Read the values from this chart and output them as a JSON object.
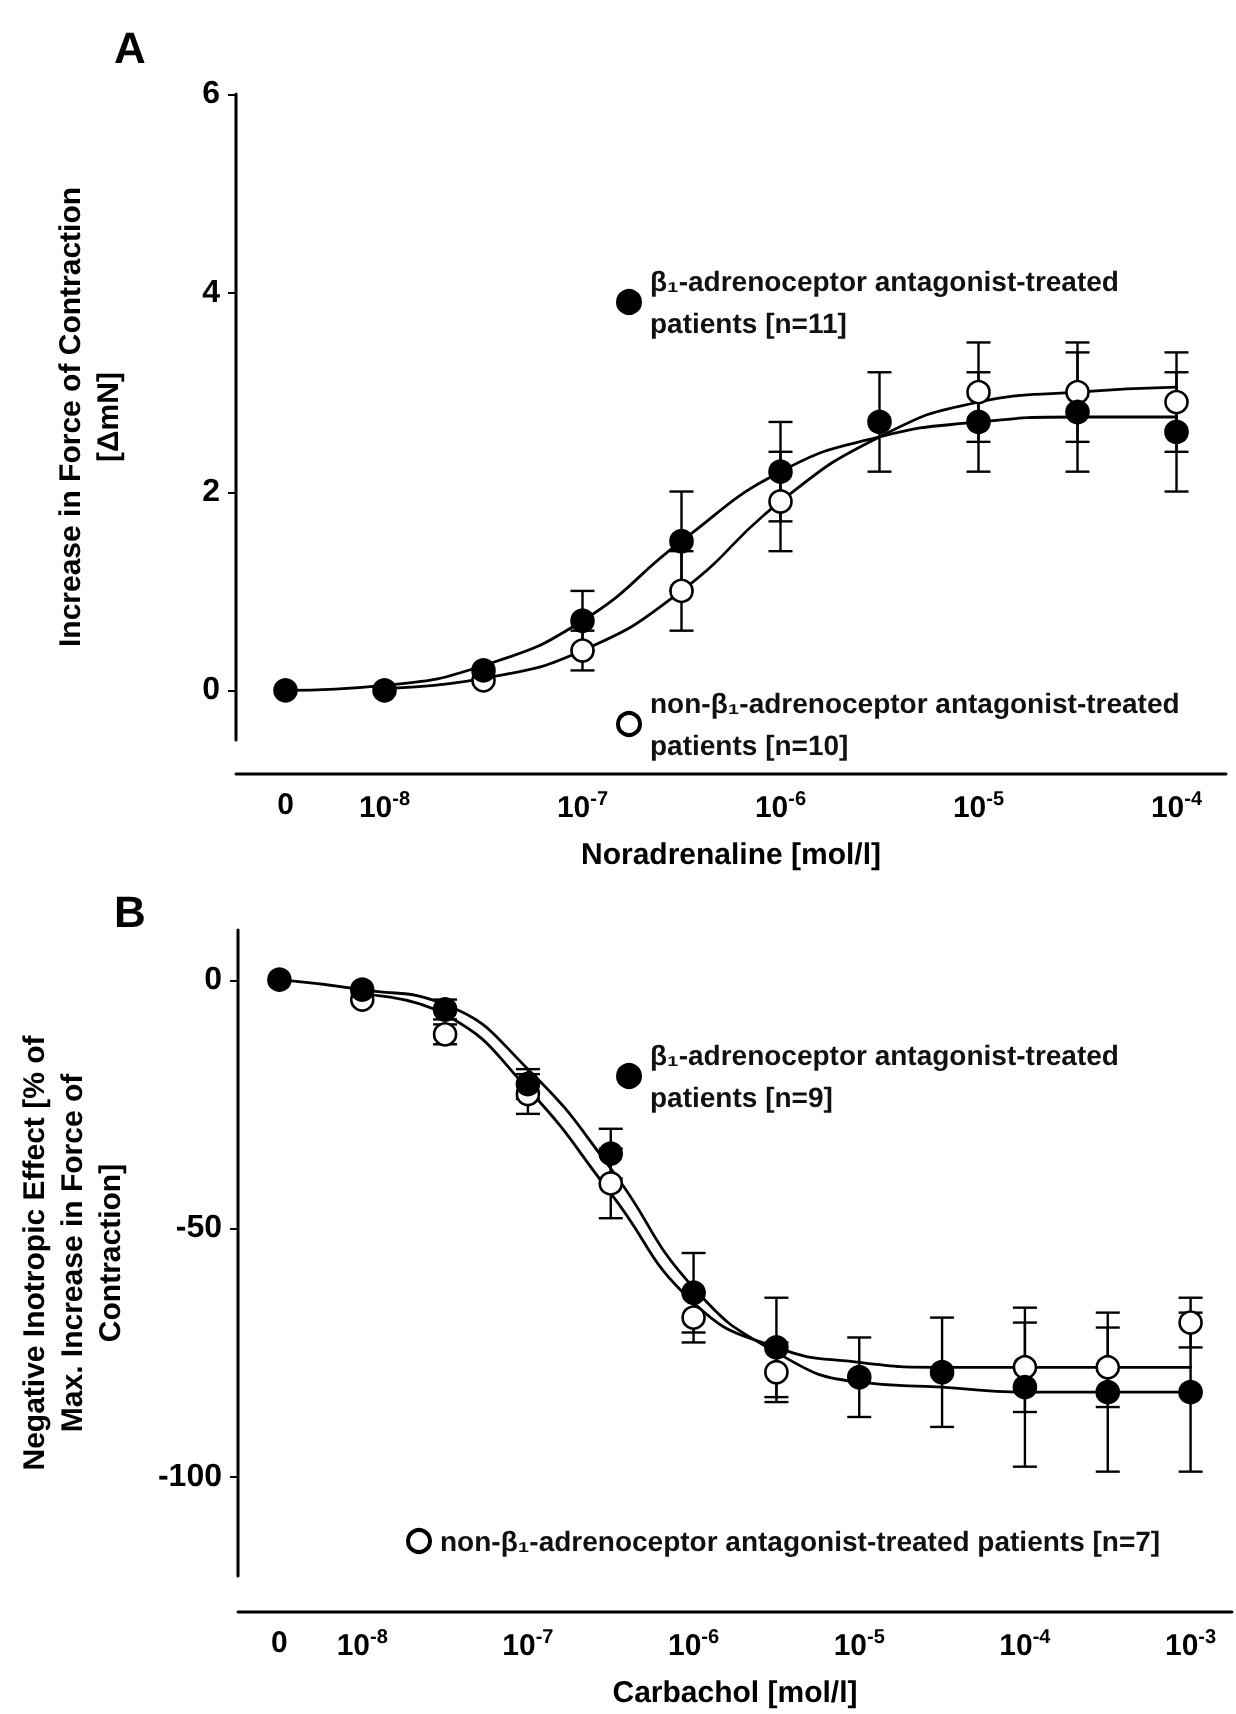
{
  "chart_data": [
    {
      "type": "scatter",
      "title": "A",
      "xlabel": "Noradrenaline [mol/l]",
      "ylabel": "Increase in Force of Contraction [ΔmN]",
      "categories": [
        "0",
        "10$^{-8}$",
        null,
        "10$^{-7}$",
        null,
        "10$^{-6}$",
        null,
        "10$^{-5}$",
        null,
        "10$^{-4}$"
      ],
      "ylim": [
        -0.5,
        6
      ],
      "yticks": [
        0,
        2,
        4,
        6
      ],
      "grid": false,
      "legend": "right",
      "marker": "circle",
      "series": [
        {
          "name": "β₁-adrenoceptor antagonist-treated patients [n=11]",
          "color": "#000000",
          "values": [
            0,
            0,
            0.2,
            0.7,
            1.5,
            2.2,
            2.7,
            2.7,
            2.8,
            2.6
          ],
          "errors": [
            null,
            null,
            null,
            0.3,
            0.5,
            0.5,
            0.5,
            0.5,
            0.6,
            0.6
          ]
        },
        {
          "name": "non-β₁-adrenoceptor antagonist-treated patients [n=10]",
          "color": "#ffffff",
          "values": [
            null,
            null,
            0.1,
            0.4,
            1.0,
            1.9,
            null,
            3.0,
            3.0,
            2.9
          ],
          "errors": [
            null,
            null,
            null,
            0.2,
            0.4,
            0.5,
            null,
            0.5,
            0.5,
            0.5
          ]
        },
        {
          "type": "line",
          "color": "#000000",
          "marker": "none",
          "values": [
            0,
            0.05,
            0.25,
            0.7,
            1.5,
            2.2,
            2.55,
            2.7,
            2.75,
            2.75
          ]
        },
        {
          "type": "line",
          "color": "#000000",
          "marker": "none",
          "values": [
            null,
            0.02,
            0.12,
            0.4,
            1.0,
            1.9,
            2.55,
            2.9,
            3.0,
            3.05
          ]
        }
      ]
    },
    {
      "type": "scatter",
      "title": "B",
      "xlabel": "Carbachol [mol/l]",
      "ylabel": "Negative Inotropic Effect [% of Max. Increase in Force of Contraction]",
      "categories": [
        "0",
        "10$^{-8}$",
        null,
        "10$^{-7}$",
        null,
        "10$^{-6}$",
        null,
        "10$^{-5}$",
        null,
        "10$^{-4}$",
        null,
        "10$^{-3}$"
      ],
      "ylim": [
        -120,
        10
      ],
      "yticks": [
        0,
        -50,
        -100
      ],
      "grid": false,
      "legend": "right",
      "marker": "circle",
      "series": [
        {
          "name": "β₁-adrenoceptor antagonist-treated patients [n=9]",
          "color": "#000000",
          "values": [
            0,
            -2,
            -6,
            -21,
            -35,
            -63,
            -74,
            -80,
            -79,
            -82,
            -83,
            -83
          ],
          "errors": [
            null,
            null,
            2,
            3,
            5,
            8,
            10,
            8,
            11,
            16,
            16,
            16
          ]
        },
        {
          "name": "non-β₁-adrenoceptor antagonist-treated patients [n=7]",
          "color": "#ffffff",
          "values": [
            null,
            -4,
            -11,
            -23,
            -41,
            -68,
            -79,
            null,
            null,
            -78,
            -78,
            -69
          ],
          "errors": [
            null,
            null,
            2,
            4,
            7,
            5,
            6,
            null,
            null,
            9,
            8,
            5
          ]
        },
        {
          "type": "line",
          "color": "#000000",
          "marker": "none",
          "values": [
            0,
            -2,
            -5,
            -18,
            -38,
            -62,
            -75,
            -81,
            -82,
            -83,
            -83,
            -83
          ]
        },
        {
          "type": "line",
          "color": "#000000",
          "marker": "none",
          "values": [
            null,
            -3,
            -7,
            -22,
            -43,
            -65,
            -74,
            -77,
            -78,
            -78,
            -78,
            -78
          ]
        }
      ]
    }
  ]
}
